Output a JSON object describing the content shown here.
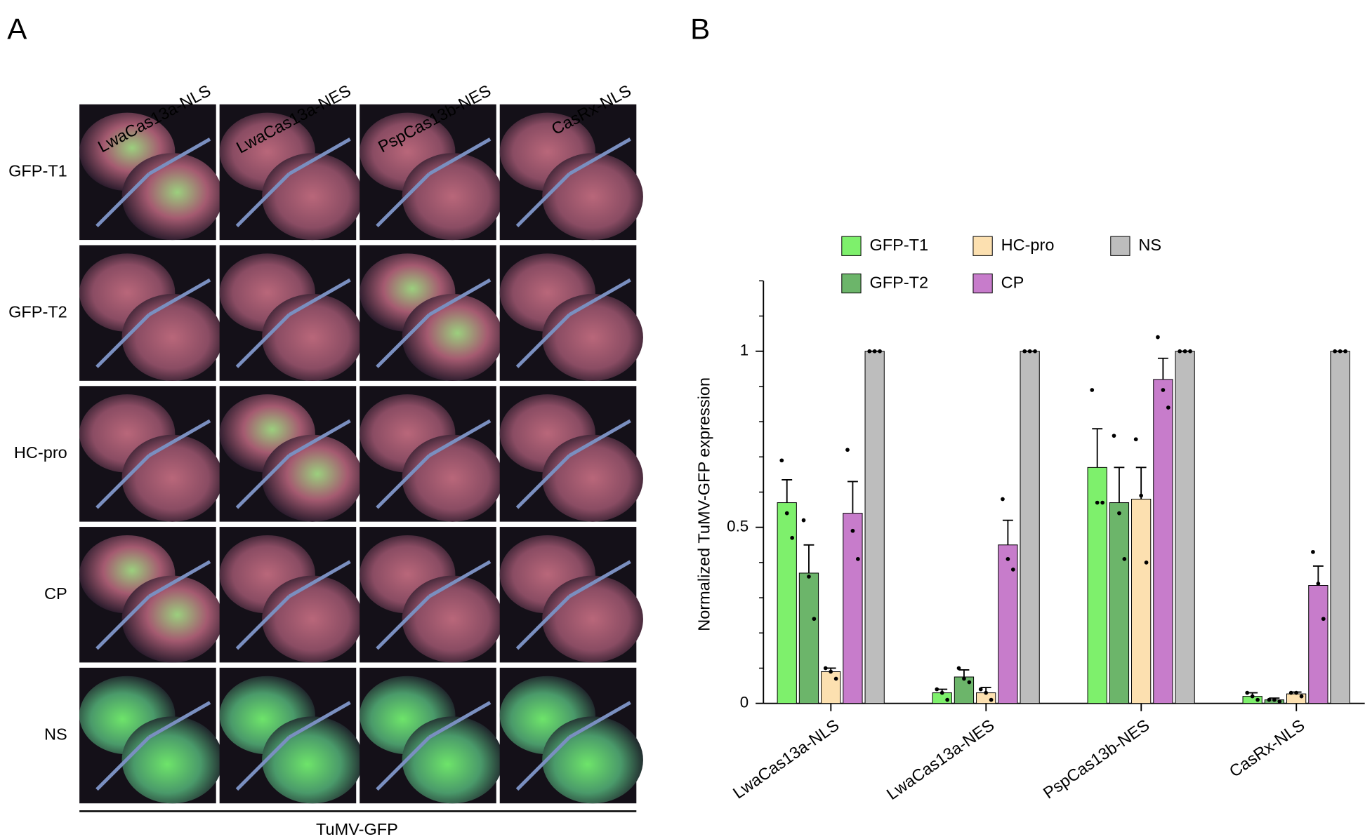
{
  "panel_a": {
    "label": "A",
    "columns": [
      "LwaCas13a-NLS",
      "LwaCas13a-NES",
      "PspCas13b-NES",
      "CasRx-NLS"
    ],
    "rows": [
      "GFP-T1",
      "GFP-T2",
      "HC-pro",
      "CP",
      "NS"
    ],
    "footer": "TuMV-GFP"
  },
  "chart_data": {
    "type": "bar",
    "panel_label": "B",
    "ylabel": "Normalized TuMV-GFP expression",
    "categories": [
      "LwaCas13a-NLS",
      "LwaCas13a-NES",
      "PspCas13b-NES",
      "CasRx-NLS"
    ],
    "series": [
      {
        "name": "GFP-T1",
        "color": "#7ef06c",
        "values": [
          0.57,
          0.03,
          0.67,
          0.02
        ],
        "errors": [
          0.065,
          0.01,
          0.11,
          0.01
        ],
        "points": [
          [
            0.69,
            0.54,
            0.47
          ],
          [
            0.04,
            0.03,
            0.01
          ],
          [
            0.89,
            0.57,
            0.57
          ],
          [
            0.03,
            0.02,
            0.01
          ]
        ]
      },
      {
        "name": "GFP-T2",
        "color": "#6cb56a",
        "values": [
          0.37,
          0.075,
          0.57,
          0.01
        ],
        "errors": [
          0.08,
          0.02,
          0.1,
          0.005
        ],
        "points": [
          [
            0.52,
            0.36,
            0.24
          ],
          [
            0.1,
            0.07,
            0.06
          ],
          [
            0.76,
            0.54,
            0.41
          ],
          [
            0.01,
            0.01,
            0.005
          ]
        ]
      },
      {
        "name": "HC-pro",
        "color": "#fce0b0",
        "values": [
          0.09,
          0.03,
          0.58,
          0.027
        ],
        "errors": [
          0.01,
          0.015,
          0.09,
          0.005
        ],
        "points": [
          [
            0.1,
            0.09,
            0.07
          ],
          [
            0.04,
            0.03,
            0.01
          ],
          [
            0.75,
            0.59,
            0.4
          ],
          [
            0.03,
            0.03,
            0.02
          ]
        ]
      },
      {
        "name": "CP",
        "color": "#c77ccb",
        "values": [
          0.54,
          0.45,
          0.92,
          0.335
        ],
        "errors": [
          0.09,
          0.07,
          0.06,
          0.055
        ],
        "points": [
          [
            0.72,
            0.49,
            0.41
          ],
          [
            0.58,
            0.41,
            0.38
          ],
          [
            1.04,
            0.89,
            0.84
          ],
          [
            0.43,
            0.34,
            0.24
          ]
        ]
      },
      {
        "name": "NS",
        "color": "#bdbdbd",
        "values": [
          1,
          1,
          1,
          1
        ],
        "errors": [
          0,
          0,
          0,
          0
        ],
        "points": [
          [
            1,
            1,
            1
          ],
          [
            1,
            1,
            1
          ],
          [
            1,
            1,
            1
          ],
          [
            1,
            1,
            1
          ]
        ]
      }
    ],
    "ylim": [
      0,
      1.2
    ],
    "yticks": [
      0,
      0.5,
      1
    ],
    "yticks_minor": [
      0.1,
      0.2,
      0.3,
      0.4,
      0.6,
      0.7,
      0.8,
      0.9,
      1.1,
      1.2
    ]
  }
}
